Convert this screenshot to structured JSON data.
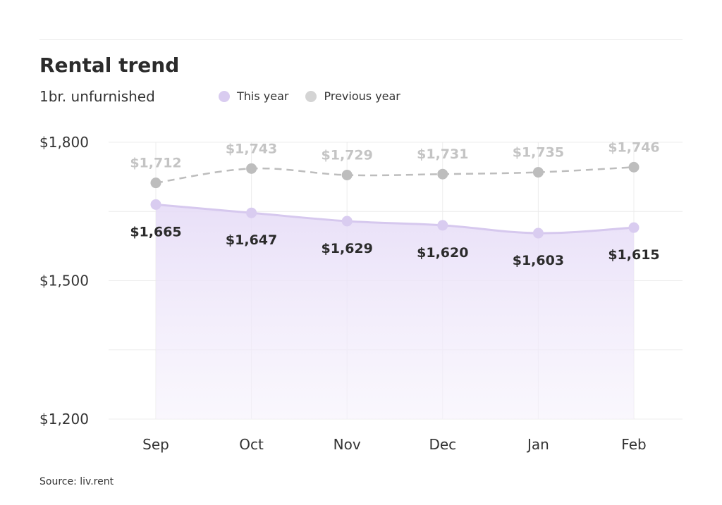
{
  "header": {
    "title": "Rental trend",
    "subtitle": "1br. unfurnished"
  },
  "legend": [
    {
      "label": "This year",
      "color": "#d9ccf0"
    },
    {
      "label": "Previous year",
      "color": "#d4d4d4"
    }
  ],
  "source": "Source: liv.rent",
  "chart_data": {
    "type": "line",
    "categories": [
      "Sep",
      "Oct",
      "Nov",
      "Dec",
      "Jan",
      "Feb"
    ],
    "series": [
      {
        "name": "This year",
        "values": [
          1665,
          1647,
          1629,
          1620,
          1603,
          1615
        ],
        "labels": [
          "$1,665",
          "$1,647",
          "$1,629",
          "$1,620",
          "$1,603",
          "$1,615"
        ],
        "color": "#d9ccf0",
        "style": "solid-area"
      },
      {
        "name": "Previous year",
        "values": [
          1712,
          1743,
          1729,
          1731,
          1735,
          1746
        ],
        "labels": [
          "$1,712",
          "$1,743",
          "$1,729",
          "$1,731",
          "$1,735",
          "$1,746"
        ],
        "color": "#bdbdbd",
        "style": "dashed"
      }
    ],
    "yticks": [
      1200,
      1500,
      1800
    ],
    "ytick_labels": [
      "$1,200",
      "$1,500",
      "$1,800"
    ],
    "ylim": [
      1200,
      1800
    ],
    "grid": true,
    "legend_position": "top"
  }
}
